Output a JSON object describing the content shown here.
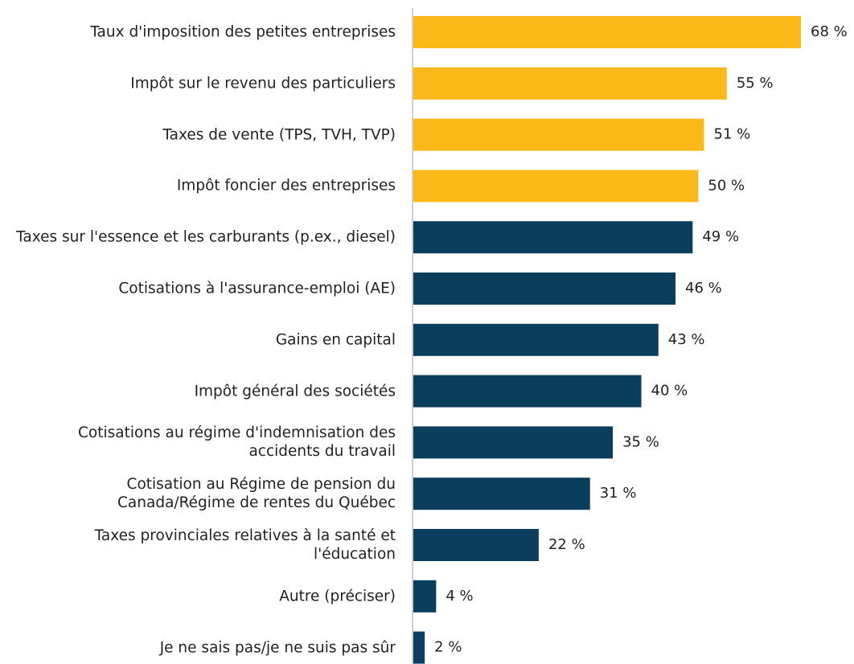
{
  "chart_data": {
    "type": "bar",
    "orientation": "horizontal",
    "categories": [
      "Taux d'imposition des petites entreprises",
      "Impôt sur le revenu des particuliers",
      "Taxes de vente (TPS, TVH, TVP)",
      "Impôt foncier des entreprises",
      "Taxes sur l'essence et les carburants (p.ex., diesel)",
      "Cotisations à l'assurance-emploi (AE)",
      "Gains en capital",
      "Impôt général des sociétés",
      "Cotisations au régime d'indemnisation des accidents du travail",
      "Cotisation au Régime de pension du Canada/Régime de rentes du Québec",
      "Taxes provinciales relatives à la santé et l'éducation",
      "Autre (préciser)",
      "Je ne sais pas/je ne suis pas sûr"
    ],
    "values": [
      68,
      55,
      51,
      50,
      49,
      46,
      43,
      40,
      35,
      31,
      22,
      4,
      2
    ],
    "value_labels": [
      "68 %",
      "55 %",
      "51 %",
      "50 %",
      "49 %",
      "46 %",
      "43 %",
      "40 %",
      "35 %",
      "31 %",
      "22 %",
      "4 %",
      "2 %"
    ],
    "colors": [
      "#fbb919",
      "#fbb919",
      "#fbb919",
      "#fbb919",
      "#0b3d5c",
      "#0b3d5c",
      "#0b3d5c",
      "#0b3d5c",
      "#0b3d5c",
      "#0b3d5c",
      "#0b3d5c",
      "#0b3d5c",
      "#0b3d5c"
    ]
  }
}
